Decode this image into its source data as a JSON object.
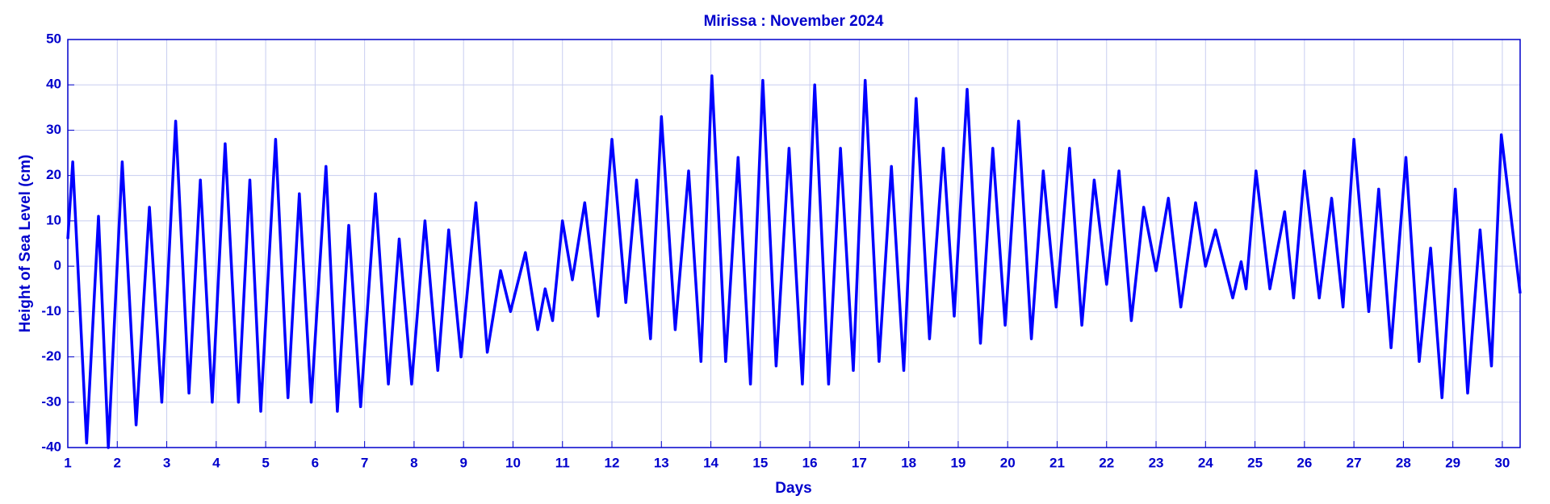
{
  "chart_data": {
    "type": "line",
    "title": "Mirissa : November 2024",
    "xlabel": "Days",
    "ylabel": "Height of Sea Level (cm)",
    "x": [
      1.0,
      1.1,
      1.38,
      1.62,
      1.82,
      2.1,
      2.38,
      2.65,
      2.9,
      3.18,
      3.45,
      3.68,
      3.92,
      4.18,
      4.45,
      4.68,
      4.9,
      5.2,
      5.45,
      5.68,
      5.92,
      6.22,
      6.45,
      6.68,
      6.92,
      7.22,
      7.48,
      7.7,
      7.95,
      8.22,
      8.48,
      8.7,
      8.95,
      9.25,
      9.48,
      9.75,
      9.95,
      10.25,
      10.5,
      10.65,
      10.8,
      11.0,
      11.2,
      11.45,
      11.72,
      12.0,
      12.28,
      12.5,
      12.78,
      13.0,
      13.28,
      13.55,
      13.8,
      14.02,
      14.3,
      14.55,
      14.8,
      15.05,
      15.32,
      15.58,
      15.85,
      16.1,
      16.38,
      16.62,
      16.88,
      17.12,
      17.4,
      17.65,
      17.9,
      18.15,
      18.42,
      18.7,
      18.92,
      19.18,
      19.45,
      19.7,
      19.95,
      20.22,
      20.48,
      20.72,
      20.98,
      21.25,
      21.5,
      21.75,
      22.0,
      22.25,
      22.5,
      22.75,
      23.0,
      23.25,
      23.5,
      23.8,
      24.0,
      24.2,
      24.55,
      24.72,
      24.82,
      25.02,
      25.3,
      25.6,
      25.78,
      26.0,
      26.3,
      26.55,
      26.78,
      27.0,
      27.3,
      27.5,
      27.75,
      28.05,
      28.32,
      28.55,
      28.78,
      29.05,
      29.3,
      29.55,
      29.78,
      29.98,
      30.36
    ],
    "values": [
      6,
      23,
      -39,
      11,
      -40,
      23,
      -35,
      13,
      -30,
      32,
      -28,
      19,
      -30,
      27,
      -30,
      19,
      -32,
      28,
      -29,
      16,
      -30,
      22,
      -32,
      9,
      -31,
      16,
      -26,
      6,
      -26,
      10,
      -23,
      8,
      -20,
      14,
      -19,
      -1,
      -10,
      3,
      -14,
      -5,
      -12,
      10,
      -3,
      14,
      -11,
      28,
      -8,
      19,
      -16,
      33,
      -14,
      21,
      -21,
      42,
      -21,
      24,
      -26,
      41,
      -22,
      26,
      -26,
      40,
      -26,
      26,
      -23,
      41,
      -21,
      22,
      -23,
      37,
      -16,
      26,
      -11,
      39,
      -17,
      26,
      -13,
      32,
      -16,
      21,
      -9,
      26,
      -13,
      19,
      -4,
      21,
      -12,
      13,
      -1,
      15,
      -9,
      14,
      0,
      8,
      -7,
      1,
      -5,
      21,
      -5,
      12,
      -7,
      21,
      -7,
      15,
      -9,
      28,
      -10,
      17,
      -18,
      24,
      -21,
      4,
      -29,
      17,
      -28,
      8,
      -22,
      29,
      -6
    ],
    "color": "#0000ff",
    "xlim": [
      1,
      30.36
    ],
    "xticks": [
      1,
      2,
      3,
      4,
      5,
      6,
      7,
      8,
      9,
      10,
      11,
      12,
      13,
      14,
      15,
      16,
      17,
      18,
      19,
      20,
      21,
      22,
      23,
      24,
      25,
      26,
      27,
      28,
      29,
      30
    ],
    "ylim": [
      -40,
      50
    ],
    "yticks": [
      -40,
      -30,
      -20,
      -10,
      0,
      10,
      20,
      30,
      40,
      50
    ],
    "grid": true
  }
}
